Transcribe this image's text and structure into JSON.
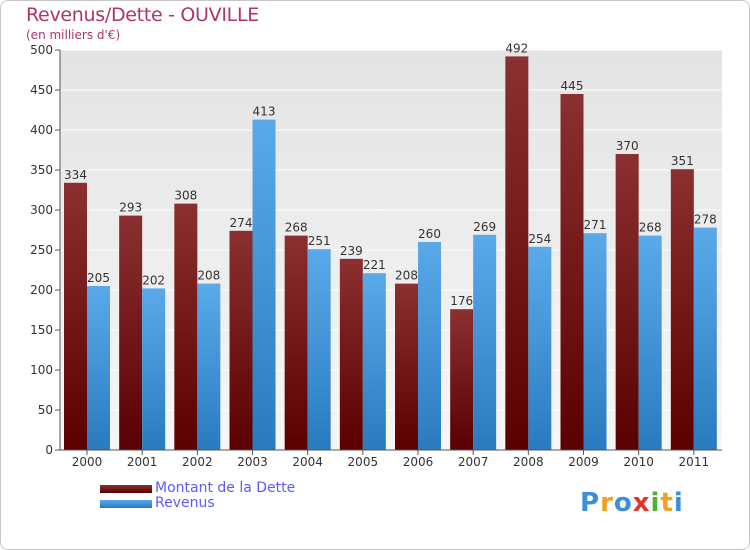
{
  "header": {
    "title": "Revenus/Dette - OUVILLE",
    "subtitle": "(en milliers d'€)"
  },
  "colors": {
    "title": "#b0336b",
    "dette_top": "#8a3030",
    "dette_bottom": "#5a0000",
    "revenus_top": "#5aaaea",
    "revenus_bottom": "#2a7ac0",
    "legend_text": "#5a5aff"
  },
  "chart_data": {
    "type": "bar",
    "categories": [
      "2000",
      "2001",
      "2002",
      "2003",
      "2004",
      "2005",
      "2006",
      "2007",
      "2008",
      "2009",
      "2010",
      "2011"
    ],
    "series": [
      {
        "name": "Montant de la Dette",
        "values": [
          334,
          293,
          308,
          274,
          268,
          239,
          208,
          176,
          492,
          445,
          370,
          351
        ]
      },
      {
        "name": "Revenus",
        "values": [
          205,
          202,
          208,
          413,
          251,
          221,
          260,
          269,
          254,
          271,
          268,
          278
        ]
      }
    ],
    "ylim": [
      0,
      500
    ],
    "yticks": [
      0,
      50,
      100,
      150,
      200,
      250,
      300,
      350,
      400,
      450,
      500
    ],
    "grid": true,
    "legend_position": "bottom-left"
  },
  "legend": {
    "items": [
      "Montant de la Dette",
      "Revenus"
    ]
  },
  "logo": {
    "letters": [
      "P",
      "r",
      "o",
      "x",
      "i",
      "t",
      "i"
    ],
    "letter_colors": [
      "#3a8fd8",
      "#f0a020",
      "#3a8fd8",
      "#e83030",
      "#50b030",
      "#f0a020",
      "#3a8fd8"
    ]
  }
}
